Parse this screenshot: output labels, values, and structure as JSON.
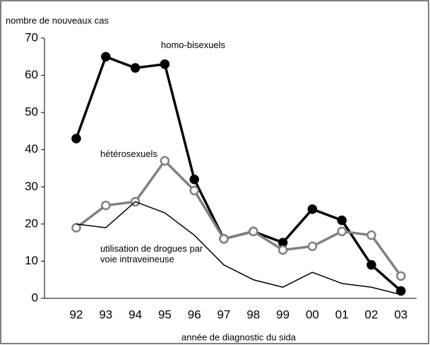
{
  "chart_data": {
    "type": "line",
    "y_label": "nombre de nouveaux cas",
    "x_label": "année de diagnostic du sida",
    "categories": [
      "92",
      "93",
      "94",
      "95",
      "96",
      "97",
      "98",
      "99",
      "00",
      "01",
      "02",
      "03"
    ],
    "series": [
      {
        "name": "homo-bisexuels",
        "color": "#000000",
        "marker": "filled",
        "values": [
          43,
          65,
          62,
          63,
          32,
          16,
          18,
          15,
          24,
          21,
          9,
          2
        ]
      },
      {
        "name": "hétérosexuels",
        "color": "#808080",
        "marker": "open",
        "values": [
          19,
          25,
          26,
          37,
          29,
          16,
          18,
          13,
          14,
          18,
          17,
          6
        ]
      },
      {
        "name": "utilisation de drogues par voie intraveineuse",
        "color": "#000000",
        "marker": "none",
        "values": [
          20,
          19,
          26,
          23,
          17,
          9,
          5,
          3,
          7,
          4,
          3,
          1
        ]
      }
    ],
    "ylim": [
      0,
      70
    ],
    "yticks": [
      0,
      10,
      20,
      30,
      40,
      50,
      60,
      70
    ],
    "grid": false
  }
}
